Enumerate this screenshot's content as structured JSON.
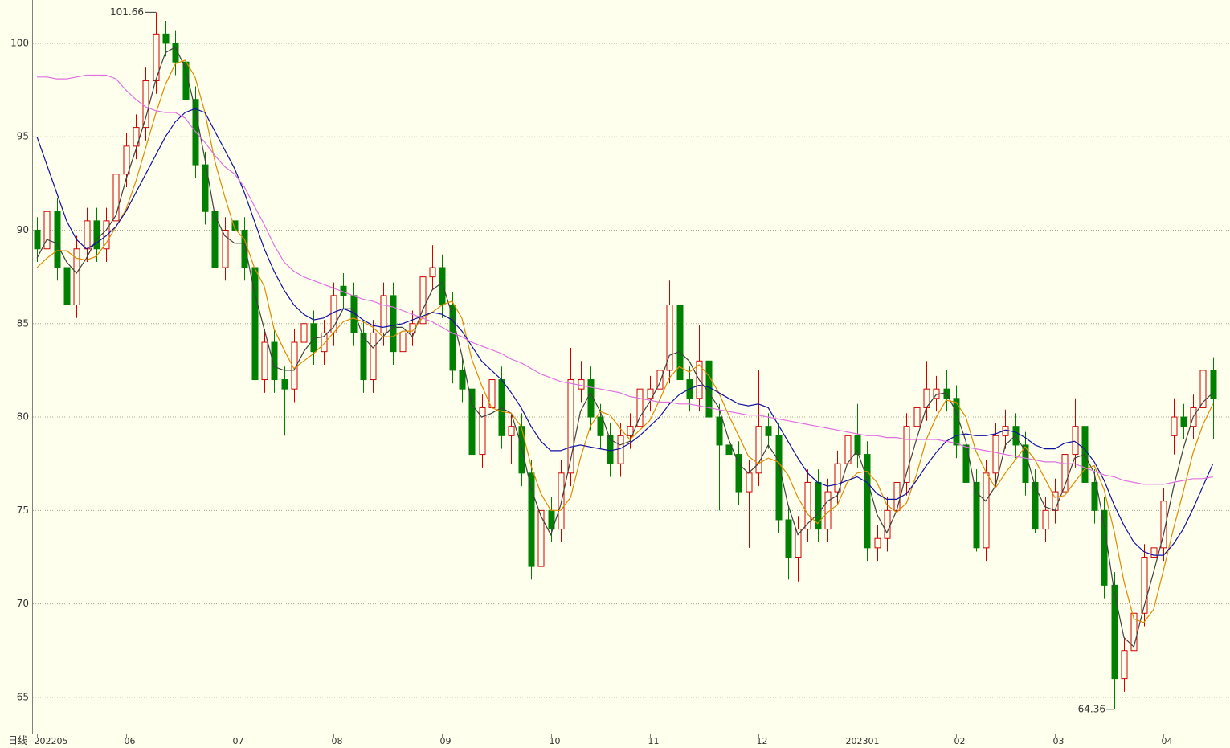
{
  "chart_data": {
    "type": "candlestick",
    "period_label": "日线",
    "categories": [
      "202205",
      null,
      null,
      null,
      null,
      null,
      null,
      null,
      null,
      "06",
      null,
      null,
      null,
      null,
      null,
      null,
      null,
      null,
      null,
      null,
      "07",
      null,
      null,
      null,
      null,
      null,
      null,
      null,
      null,
      null,
      "08",
      null,
      null,
      null,
      null,
      null,
      null,
      null,
      null,
      null,
      null,
      "09",
      null,
      null,
      null,
      null,
      null,
      null,
      null,
      null,
      null,
      null,
      "10",
      null,
      null,
      null,
      null,
      null,
      null,
      null,
      null,
      null,
      "11",
      null,
      null,
      null,
      null,
      null,
      null,
      null,
      null,
      null,
      null,
      "12",
      null,
      null,
      null,
      null,
      null,
      null,
      null,
      null,
      "202301",
      null,
      null,
      null,
      null,
      null,
      null,
      null,
      null,
      null,
      null,
      "02",
      null,
      null,
      null,
      null,
      null,
      null,
      null,
      null,
      null,
      "03",
      null,
      null,
      null,
      null,
      null,
      null,
      null,
      null,
      null,
      null,
      "04",
      null,
      null,
      null,
      null,
      null
    ],
    "ohlc": [
      [
        90,
        90.7,
        88.3,
        89
      ],
      [
        89,
        91.7,
        88.3,
        91
      ],
      [
        91,
        91.7,
        87.3,
        88
      ],
      [
        88,
        88.7,
        85.3,
        86
      ],
      [
        86,
        89.7,
        85.3,
        89
      ],
      [
        89,
        91.2,
        88.3,
        90.5
      ],
      [
        90.5,
        91.2,
        88.3,
        89
      ],
      [
        89,
        91.2,
        88.3,
        90.5
      ],
      [
        90.5,
        93.7,
        89.8,
        93
      ],
      [
        93,
        95.2,
        92.3,
        94.5
      ],
      [
        94.5,
        96.2,
        93.8,
        95.5
      ],
      [
        95.5,
        98.7,
        94.8,
        98
      ],
      [
        98,
        101.66,
        97.3,
        100.5
      ],
      [
        100.5,
        101.2,
        99.3,
        100
      ],
      [
        100,
        100.7,
        98.3,
        99
      ],
      [
        99,
        99.7,
        96.3,
        97
      ],
      [
        97,
        97.7,
        92.8,
        93.5
      ],
      [
        93.5,
        94.2,
        90.3,
        91
      ],
      [
        91,
        91.7,
        87.3,
        88
      ],
      [
        88,
        90.7,
        87.3,
        90
      ],
      [
        90.5,
        91,
        89.3,
        90
      ],
      [
        90,
        90.7,
        87.3,
        88
      ],
      [
        88,
        88.7,
        79,
        82
      ],
      [
        82,
        84.7,
        81.3,
        84
      ],
      [
        84,
        84.7,
        81.3,
        82
      ],
      [
        82,
        82.7,
        79,
        81.5
      ],
      [
        81.5,
        84.7,
        80.8,
        84
      ],
      [
        84,
        85.7,
        83.3,
        85
      ],
      [
        85,
        85.7,
        82.8,
        83.5
      ],
      [
        83.5,
        85.2,
        82.8,
        84.5
      ],
      [
        84.5,
        87.2,
        83.8,
        86.5
      ],
      [
        87,
        87.7,
        85.8,
        86.5
      ],
      [
        86.5,
        87.2,
        83.8,
        84.5
      ],
      [
        84.5,
        85.2,
        81.3,
        82
      ],
      [
        82,
        85.2,
        81.3,
        84.5
      ],
      [
        84.5,
        87.2,
        83.8,
        86.5
      ],
      [
        86.5,
        87.2,
        82.8,
        83.5
      ],
      [
        83.5,
        85.2,
        82.8,
        84.5
      ],
      [
        84.5,
        85.7,
        83.8,
        85
      ],
      [
        85,
        88.2,
        84.3,
        87.5
      ],
      [
        87.5,
        89.2,
        86.8,
        88
      ],
      [
        88,
        88.7,
        85.3,
        86
      ],
      [
        86,
        86.7,
        81.8,
        82.5
      ],
      [
        82.5,
        83.2,
        80.8,
        81.5
      ],
      [
        81.5,
        82.2,
        77.3,
        78
      ],
      [
        78,
        81.2,
        77.3,
        80.5
      ],
      [
        80.5,
        82.7,
        79.8,
        82
      ],
      [
        82,
        82.7,
        78.3,
        79
      ],
      [
        79,
        80.2,
        77.5,
        79.5
      ],
      [
        79.5,
        80.2,
        76.3,
        77
      ],
      [
        77,
        77.7,
        71.3,
        72
      ],
      [
        72,
        75.7,
        71.3,
        75
      ],
      [
        75,
        75.7,
        73.3,
        74
      ],
      [
        74,
        77.7,
        73.3,
        77
      ],
      [
        77,
        83.7,
        76.3,
        82
      ],
      [
        81.5,
        83,
        80.8,
        82
      ],
      [
        82,
        82.7,
        79.3,
        80
      ],
      [
        80,
        80.7,
        78.3,
        79
      ],
      [
        79,
        79.7,
        76.8,
        77.5
      ],
      [
        77.5,
        79.7,
        76.8,
        79
      ],
      [
        79,
        80.2,
        78.3,
        79.5
      ],
      [
        79.5,
        82.2,
        78.8,
        81.5
      ],
      [
        81,
        82.2,
        80.3,
        81.5
      ],
      [
        81.5,
        83.2,
        80.8,
        82.5
      ],
      [
        82.5,
        87.3,
        81.8,
        86
      ],
      [
        86,
        86.7,
        81.3,
        82
      ],
      [
        82,
        82.7,
        80.3,
        81
      ],
      [
        81,
        84.9,
        80.3,
        83
      ],
      [
        83,
        83.7,
        79.3,
        80
      ],
      [
        80,
        80.7,
        75,
        78.5
      ],
      [
        78.5,
        79.2,
        77.3,
        78
      ],
      [
        78,
        78.7,
        75.3,
        76
      ],
      [
        76,
        77.7,
        73,
        77
      ],
      [
        77,
        82.5,
        76.3,
        79.5
      ],
      [
        79.5,
        80.2,
        78.3,
        79
      ],
      [
        79,
        79.7,
        73.8,
        74.5
      ],
      [
        74.5,
        75.2,
        71.3,
        72.5
      ],
      [
        72.5,
        74.7,
        71.2,
        74
      ],
      [
        74,
        77.2,
        73.3,
        76.5
      ],
      [
        76.5,
        77.2,
        73.3,
        74
      ],
      [
        74,
        76.7,
        73.3,
        76
      ],
      [
        76,
        78.2,
        75.3,
        77.5
      ],
      [
        77.5,
        80.2,
        76.8,
        79
      ],
      [
        79,
        80.7,
        77.3,
        78
      ],
      [
        78,
        78.7,
        72.3,
        73
      ],
      [
        73,
        74.2,
        72.3,
        73.5
      ],
      [
        73.5,
        75.7,
        72.8,
        75
      ],
      [
        75,
        77.2,
        74.3,
        76.5
      ],
      [
        76.5,
        80.2,
        75.8,
        79.5
      ],
      [
        79.5,
        81.2,
        78.8,
        80.5
      ],
      [
        80.5,
        83,
        79.8,
        81.5
      ],
      [
        81,
        82.2,
        80.3,
        81.5
      ],
      [
        81.5,
        82.5,
        80.3,
        81
      ],
      [
        81,
        81.7,
        77.8,
        78.5
      ],
      [
        78.5,
        79.2,
        75.8,
        76.5
      ],
      [
        76.5,
        77.2,
        72.8,
        73
      ],
      [
        73,
        77.7,
        72.3,
        77
      ],
      [
        77,
        79.7,
        76.3,
        79
      ],
      [
        79,
        80.4,
        78.3,
        79.5
      ],
      [
        79.5,
        80.2,
        77.8,
        78.5
      ],
      [
        78.5,
        79.2,
        75.8,
        76.5
      ],
      [
        76.5,
        77.2,
        73.8,
        74
      ],
      [
        74,
        75.7,
        73.3,
        75
      ],
      [
        75,
        76.7,
        74.3,
        76
      ],
      [
        76,
        78.7,
        75.3,
        78
      ],
      [
        78,
        81,
        77.3,
        79.5
      ],
      [
        79.5,
        80.2,
        75.8,
        76.5
      ],
      [
        76.5,
        77.2,
        74.3,
        75
      ],
      [
        75,
        75.7,
        70.3,
        71
      ],
      [
        71,
        71.7,
        64.36,
        66
      ],
      [
        66,
        68.2,
        65.3,
        67.5
      ],
      [
        67.5,
        71.5,
        66.8,
        69.5
      ],
      [
        69.5,
        73.2,
        68.8,
        72.5
      ],
      [
        72.5,
        73.7,
        71.8,
        73
      ],
      [
        73,
        76.2,
        72.3,
        75.5
      ],
      [
        79,
        81,
        78,
        80
      ],
      [
        80,
        80.7,
        78.8,
        79.5
      ],
      [
        79.5,
        81.2,
        78.8,
        80.5
      ],
      [
        80.5,
        83.5,
        79.8,
        82.5
      ],
      [
        82.5,
        83.2,
        78.8,
        81
      ]
    ],
    "up_color": "#d00000",
    "down_color": "#008000",
    "series": [
      {
        "color": "#404040",
        "values": [
          88.5,
          89.5,
          89.3,
          88.3,
          87.7,
          88.5,
          89.5,
          90,
          90.8,
          92.7,
          94.3,
          96,
          98,
          99.5,
          99.8,
          98.7,
          96.5,
          93.8,
          90.8,
          89.7,
          89.3,
          89.3,
          86.7,
          84.7,
          82.7,
          82.5,
          82.5,
          83.5,
          84.2,
          84.3,
          84.8,
          85.8,
          85.8,
          84.3,
          83.7,
          84.3,
          84.8,
          84.8,
          84.3,
          85.7,
          86.8,
          87.2,
          85.5,
          83.3,
          80.7,
          80,
          80.2,
          80.5,
          80.2,
          78.5,
          76.2,
          74.7,
          73.7,
          75.3,
          77.7,
          80.3,
          81.3,
          80.3,
          78.8,
          78.5,
          78.7,
          80,
          80.8,
          81.8,
          83.3,
          83.5,
          83,
          82,
          81.3,
          80.5,
          78.8,
          77.5,
          77,
          77.5,
          78.5,
          77.7,
          75.3,
          73.7,
          74.3,
          74.8,
          75.5,
          75.8,
          77.5,
          78.2,
          76.7,
          74.8,
          73.8,
          75,
          77,
          78.8,
          80.5,
          81.2,
          81.3,
          80.3,
          78.7,
          76,
          75.5,
          76.3,
          78.5,
          79,
          78.2,
          76.3,
          75.2,
          75,
          76.3,
          77.8,
          78,
          77,
          74.2,
          70.7,
          68.2,
          67.7,
          69.8,
          71.7,
          73.7,
          76.2,
          78.3,
          80,
          80.8,
          81.3
        ]
      },
      {
        "color": "#e08a00",
        "values": [
          88,
          88.5,
          88.9,
          88.9,
          88.5,
          88.4,
          88.6,
          89.3,
          90.2,
          91.1,
          92.6,
          94.4,
          96.2,
          97.8,
          98.9,
          99.1,
          98.2,
          96.3,
          93.7,
          91.8,
          90.1,
          89.5,
          88,
          87,
          84.7,
          83.6,
          82.6,
          83,
          83.4,
          83.9,
          84.5,
          85.1,
          85.3,
          85.1,
          84.8,
          84.3,
          84.3,
          84.6,
          84.6,
          85.3,
          85.6,
          86,
          86.2,
          85.3,
          83.1,
          81.7,
          80.5,
          80.3,
          80.2,
          79.5,
          77.4,
          75.9,
          75,
          75,
          75.7,
          77.8,
          79.5,
          80.3,
          80.1,
          79.4,
          78.8,
          79.3,
          79.8,
          80.9,
          82.1,
          82.7,
          82.4,
          82.8,
          82.2,
          81.3,
          80.1,
          79,
          77.9,
          77.5,
          77.8,
          77.6,
          76.9,
          75.7,
          74.8,
          74.3,
          74.9,
          75.3,
          76.5,
          77,
          77.1,
          76.5,
          75.3,
          74.9,
          75.4,
          76.9,
          78.8,
          80,
          80.9,
          80.8,
          80,
          78.2,
          77.1,
          76.2,
          77,
          77.7,
          78.4,
          77.7,
          76.7,
          75.7,
          75.8,
          76.5,
          77.2,
          77.4,
          76.1,
          73.9,
          71.2,
          69.2,
          69,
          69.7,
          71.8,
          74,
          76,
          78.1,
          79.6,
          80.7
        ]
      },
      {
        "color": "#1010a0",
        "values": [
          95,
          93.5,
          92,
          90.5,
          89.5,
          89,
          89.3,
          89.7,
          90.2,
          91,
          92,
          93,
          94,
          95,
          95.8,
          96.3,
          96.5,
          96.3,
          95.3,
          94.3,
          93.3,
          92,
          90.5,
          89,
          87.8,
          86.8,
          86,
          85.5,
          85.2,
          85.3,
          85.6,
          85.8,
          85.6,
          85.2,
          84.9,
          84.8,
          84.9,
          85,
          85.2,
          85.4,
          85.6,
          85.5,
          85.2,
          84.6,
          83.8,
          83,
          82.5,
          82,
          81.3,
          80.5,
          79.5,
          78.7,
          78.2,
          78.2,
          78.4,
          78.5,
          78.4,
          78.3,
          78.2,
          78.3,
          78.6,
          79,
          79.5,
          80,
          80.7,
          81.2,
          81.5,
          81.7,
          81.6,
          81.3,
          81,
          80.7,
          80.6,
          80.7,
          80.5,
          79.6,
          78.7,
          77.8,
          77,
          76.5,
          76.3,
          76.4,
          76.6,
          76.8,
          76.5,
          75.9,
          75.6,
          75.6,
          75.9,
          76.6,
          77.4,
          78.1,
          78.7,
          79,
          79.1,
          79,
          79,
          79.1,
          79.3,
          79.2,
          78.9,
          78.5,
          78.3,
          78.3,
          78.6,
          78.7,
          78.3,
          77.6,
          76.6,
          75.3,
          74.2,
          73.3,
          72.8,
          72.6,
          72.6,
          73.2,
          74,
          75.1,
          76.3,
          77.5
        ]
      },
      {
        "color": "#e070e0",
        "values": [
          98.2,
          98.2,
          98.1,
          98.1,
          98.2,
          98.3,
          98.3,
          98.3,
          98.1,
          97.5,
          97,
          96.6,
          96.4,
          96.3,
          96.3,
          96,
          95.3,
          94.7,
          94,
          93.4,
          93,
          92.3,
          91.3,
          90.3,
          89.2,
          88.3,
          87.8,
          87.5,
          87.3,
          87.1,
          86.9,
          86.7,
          86.5,
          86.3,
          86.2,
          86,
          85.9,
          85.7,
          85.5,
          85.3,
          85.1,
          84.8,
          84.5,
          84.3,
          84,
          83.8,
          83.6,
          83.4,
          83.1,
          82.9,
          82.6,
          82.3,
          82.1,
          81.9,
          81.8,
          81.7,
          81.6,
          81.5,
          81.4,
          81.3,
          81.1,
          81,
          80.9,
          80.8,
          80.8,
          80.7,
          80.7,
          80.6,
          80.5,
          80.4,
          80.3,
          80.2,
          80.1,
          80.1,
          80,
          79.9,
          79.8,
          79.7,
          79.6,
          79.5,
          79.4,
          79.3,
          79.2,
          79.1,
          79,
          79,
          78.9,
          78.9,
          78.8,
          78.8,
          78.8,
          78.8,
          78.7,
          78.6,
          78.4,
          78.3,
          78.2,
          78.1,
          78,
          77.9,
          77.8,
          77.7,
          77.6,
          77.6,
          77.5,
          77.5,
          77.3,
          77.1,
          76.9,
          76.8,
          76.6,
          76.5,
          76.4,
          76.4,
          76.4,
          76.5,
          76.6,
          76.7,
          76.7,
          76.8
        ]
      }
    ],
    "ylim": [
      63.06,
      102.32
    ],
    "yticks": [
      65,
      70,
      75,
      80,
      85,
      90,
      95,
      100
    ],
    "grid": true
  }
}
